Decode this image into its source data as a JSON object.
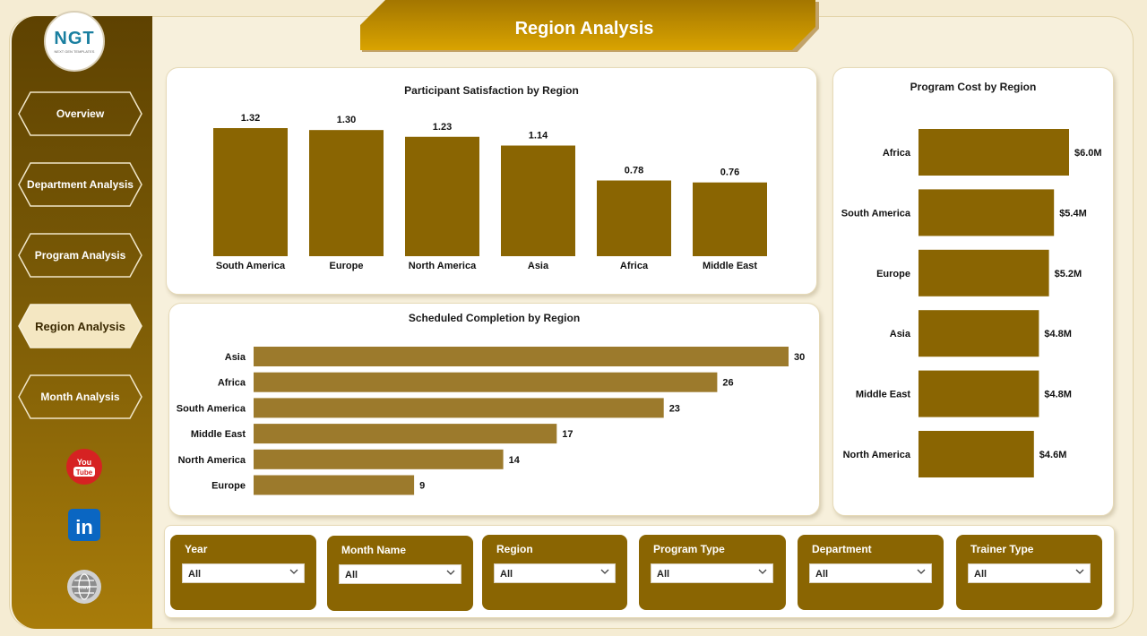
{
  "header": {
    "title": "Region Analysis"
  },
  "logo": {
    "text": "NGT",
    "subtext": "NEXT GEN TEMPLATES"
  },
  "nav": [
    {
      "label": "Overview",
      "active": false
    },
    {
      "label": "Department Analysis",
      "active": false
    },
    {
      "label": "Program Analysis",
      "active": false
    },
    {
      "label": "Region Analysis",
      "active": true
    },
    {
      "label": "Month Analysis",
      "active": false
    }
  ],
  "social": {
    "youtube": "You Tube",
    "linkedin": "in",
    "web": "www"
  },
  "colors": {
    "bar": "#8a6502",
    "bar_light": "#9c7a2c",
    "accent": "#d4a20a",
    "sidebar": "#6b4c03"
  },
  "chart_data": [
    {
      "id": "satisfaction",
      "type": "bar",
      "title": "Participant Satisfaction by Region",
      "categories": [
        "South America",
        "Europe",
        "North America",
        "Asia",
        "Africa",
        "Middle East"
      ],
      "values": [
        1.32,
        1.3,
        1.23,
        1.14,
        0.78,
        0.76
      ],
      "labels": [
        "1.32",
        "1.30",
        "1.23",
        "1.14",
        "0.78",
        "0.76"
      ],
      "ylim": [
        0,
        1.32
      ]
    },
    {
      "id": "completion",
      "type": "bar",
      "orientation": "horizontal",
      "title": "Scheduled Completion by Region",
      "categories": [
        "Asia",
        "Africa",
        "South America",
        "Middle East",
        "North America",
        "Europe"
      ],
      "values": [
        30,
        26,
        23,
        17,
        14,
        9
      ],
      "labels": [
        "30",
        "26",
        "23",
        "17",
        "14",
        "9"
      ],
      "xlim": [
        0,
        30
      ]
    },
    {
      "id": "cost",
      "type": "bar",
      "orientation": "horizontal",
      "title": "Program Cost by Region",
      "categories": [
        "Africa",
        "South America",
        "Europe",
        "Asia",
        "Middle East",
        "North America"
      ],
      "values": [
        6.0,
        5.4,
        5.2,
        4.8,
        4.8,
        4.6
      ],
      "labels": [
        "$6.0M",
        "$5.4M",
        "$5.2M",
        "$4.8M",
        "$4.8M",
        "$4.6M"
      ],
      "unit": "$M",
      "xlim": [
        0,
        6.0
      ]
    }
  ],
  "filters": [
    {
      "label": "Year",
      "value": "All"
    },
    {
      "label": "Month Name",
      "value": "All"
    },
    {
      "label": "Region",
      "value": "All"
    },
    {
      "label": "Program Type",
      "value": "All"
    },
    {
      "label": "Department",
      "value": "All"
    },
    {
      "label": "Trainer Type",
      "value": "All"
    }
  ]
}
